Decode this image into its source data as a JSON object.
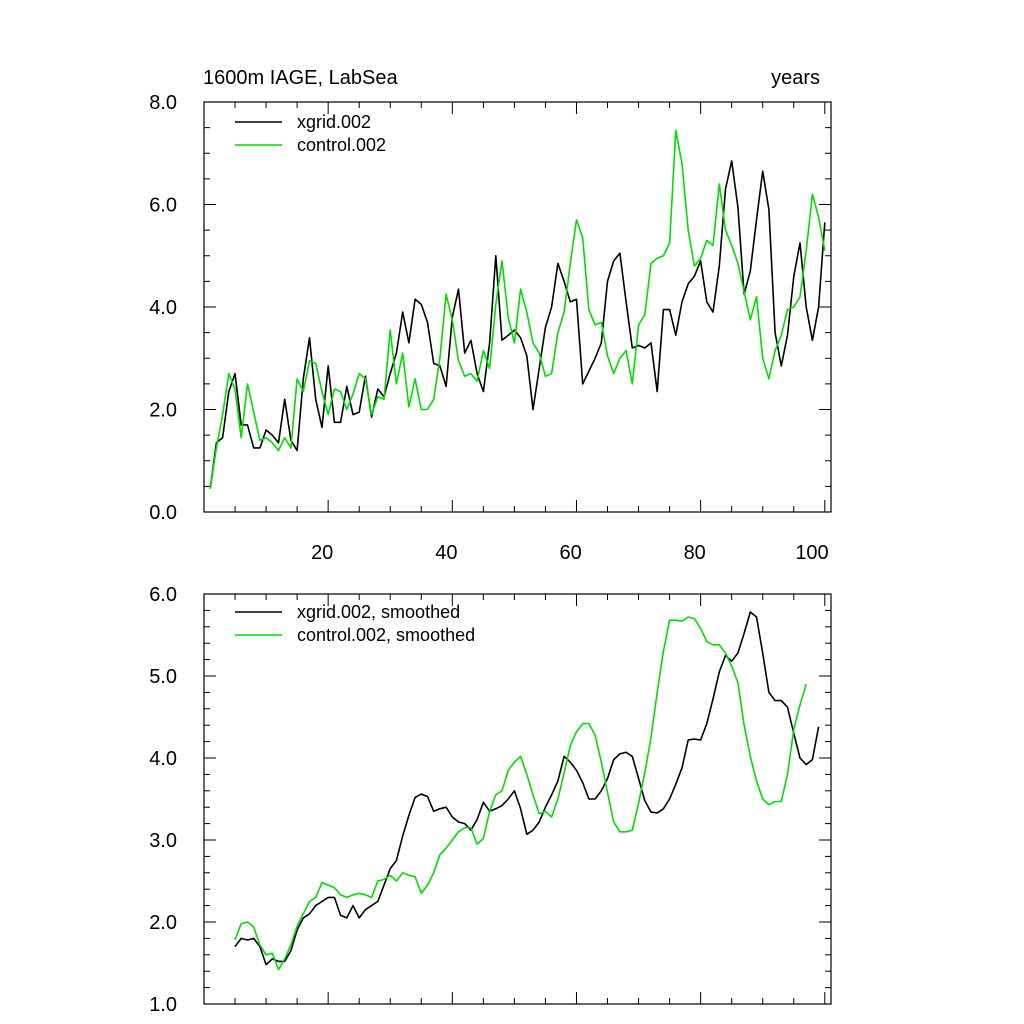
{
  "colors": {
    "series1": "#000000",
    "series2": "#00dd00",
    "axis": "#000000",
    "background": "#ffffff"
  },
  "chart_data": [
    {
      "type": "line",
      "title": "1600m IAGE, LabSea",
      "right_title": "years",
      "xlabel": "",
      "ylabel": "",
      "xlim": [
        0,
        101
      ],
      "ylim": [
        0,
        8
      ],
      "x_ticks": [
        20,
        40,
        60,
        80,
        100
      ],
      "y_ticks": [
        "0.0",
        "2.0",
        "4.0",
        "6.0",
        "8.0"
      ],
      "grid": false,
      "legend_position": "top-left",
      "x_start": 1,
      "series": [
        {
          "name": "xgrid.002",
          "color": "#000000",
          "values": [
            0.45,
            1.35,
            1.45,
            2.35,
            2.7,
            1.7,
            1.7,
            1.25,
            1.25,
            1.6,
            1.5,
            1.35,
            2.2,
            1.4,
            1.2,
            2.6,
            3.4,
            2.2,
            1.65,
            2.85,
            1.75,
            1.75,
            2.45,
            1.9,
            1.95,
            2.65,
            1.85,
            2.4,
            2.25,
            2.7,
            3.1,
            3.9,
            3.3,
            4.15,
            4.05,
            3.7,
            2.9,
            2.85,
            2.45,
            3.8,
            4.35,
            3.1,
            3.35,
            2.7,
            2.35,
            3.3,
            5.0,
            3.35,
            3.45,
            3.55,
            3.4,
            3.05,
            2.0,
            2.8,
            3.6,
            4.0,
            4.85,
            4.5,
            4.1,
            4.15,
            2.5,
            2.75,
            3.0,
            3.3,
            4.5,
            4.9,
            5.05,
            4.1,
            3.2,
            3.25,
            3.2,
            3.3,
            2.35,
            3.95,
            3.95,
            3.45,
            4.1,
            4.45,
            4.6,
            4.9,
            4.1,
            3.9,
            4.8,
            6.3,
            6.85,
            5.95,
            4.25,
            4.7,
            5.7,
            6.65,
            5.9,
            3.5,
            2.85,
            3.45,
            4.6,
            5.25,
            4.0,
            3.35,
            4.0,
            5.65
          ]
        },
        {
          "name": "control.002",
          "color": "#00dd00",
          "values": [
            0.45,
            1.25,
            1.9,
            2.7,
            2.4,
            1.45,
            2.5,
            1.95,
            1.4,
            1.45,
            1.35,
            1.2,
            1.45,
            1.25,
            2.6,
            2.35,
            2.95,
            2.9,
            2.35,
            1.9,
            2.4,
            2.35,
            2.0,
            2.3,
            2.7,
            2.6,
            1.9,
            2.25,
            2.2,
            3.55,
            2.5,
            3.1,
            2.05,
            2.6,
            2.0,
            2.0,
            2.2,
            3.0,
            4.25,
            3.75,
            2.95,
            2.65,
            2.7,
            2.55,
            3.15,
            2.8,
            4.05,
            4.9,
            3.8,
            3.3,
            4.35,
            3.9,
            3.3,
            3.1,
            2.65,
            2.7,
            3.5,
            3.9,
            4.85,
            5.7,
            5.35,
            3.95,
            3.65,
            3.7,
            3.05,
            2.7,
            3.0,
            3.15,
            2.5,
            3.65,
            3.85,
            4.85,
            4.95,
            5.0,
            5.25,
            7.45,
            6.8,
            5.5,
            4.8,
            4.95,
            5.3,
            5.2,
            6.4,
            5.5,
            5.2,
            4.85,
            4.3,
            3.75,
            4.2,
            3.0,
            2.6,
            3.15,
            3.45,
            3.95,
            4.0,
            4.2,
            5.1,
            6.2,
            5.75,
            5.1
          ]
        }
      ]
    },
    {
      "type": "line",
      "title": "",
      "xlabel": "",
      "ylabel": "",
      "xlim": [
        0,
        101
      ],
      "ylim": [
        1,
        6
      ],
      "y_ticks": [
        "1.0",
        "2.0",
        "3.0",
        "4.0",
        "5.0",
        "6.0"
      ],
      "grid": false,
      "legend_position": "top-left",
      "x_start": 5,
      "series": [
        {
          "name": "xgrid.002, smoothed",
          "color": "#000000",
          "values": [
            1.7,
            1.8,
            1.78,
            1.8,
            1.7,
            1.48,
            1.55,
            1.52,
            1.52,
            1.65,
            1.9,
            2.05,
            2.1,
            2.2,
            2.25,
            2.3,
            2.3,
            2.08,
            2.05,
            2.2,
            2.05,
            2.15,
            2.2,
            2.25,
            2.45,
            2.65,
            2.75,
            3.05,
            3.3,
            3.52,
            3.56,
            3.53,
            3.35,
            3.38,
            3.4,
            3.28,
            3.22,
            3.2,
            3.12,
            3.25,
            3.46,
            3.35,
            3.38,
            3.42,
            3.5,
            3.6,
            3.38,
            3.07,
            3.12,
            3.22,
            3.4,
            3.55,
            3.72,
            4.02,
            3.95,
            3.85,
            3.7,
            3.5,
            3.5,
            3.6,
            3.75,
            3.98,
            4.05,
            4.07,
            4.02,
            3.75,
            3.48,
            3.34,
            3.33,
            3.38,
            3.5,
            3.68,
            3.88,
            4.22,
            4.23,
            4.22,
            4.42,
            4.72,
            5.05,
            5.25,
            5.18,
            5.28,
            5.52,
            5.78,
            5.72,
            5.28,
            4.8,
            4.7,
            4.7,
            4.62,
            4.3,
            4.0,
            3.92,
            3.98,
            4.38
          ]
        },
        {
          "name": "control.002, smoothed",
          "color": "#00dd00",
          "values": [
            1.78,
            1.98,
            2.0,
            1.94,
            1.72,
            1.6,
            1.62,
            1.42,
            1.55,
            1.72,
            1.95,
            2.1,
            2.25,
            2.3,
            2.48,
            2.45,
            2.42,
            2.33,
            2.3,
            2.33,
            2.35,
            2.33,
            2.3,
            2.5,
            2.52,
            2.57,
            2.5,
            2.6,
            2.57,
            2.55,
            2.35,
            2.45,
            2.6,
            2.82,
            2.9,
            3.0,
            3.1,
            3.15,
            3.15,
            2.95,
            3.02,
            3.35,
            3.55,
            3.6,
            3.85,
            3.95,
            4.02,
            3.8,
            3.55,
            3.32,
            3.35,
            3.28,
            3.5,
            3.82,
            4.15,
            4.32,
            4.42,
            4.42,
            4.28,
            3.95,
            3.58,
            3.22,
            3.1,
            3.1,
            3.12,
            3.45,
            3.82,
            4.25,
            4.8,
            5.3,
            5.68,
            5.68,
            5.67,
            5.72,
            5.7,
            5.58,
            5.42,
            5.38,
            5.38,
            5.28,
            5.12,
            4.92,
            4.4,
            4.02,
            3.72,
            3.5,
            3.43,
            3.47,
            3.47,
            3.8,
            4.35,
            4.65,
            4.9
          ]
        }
      ]
    }
  ]
}
